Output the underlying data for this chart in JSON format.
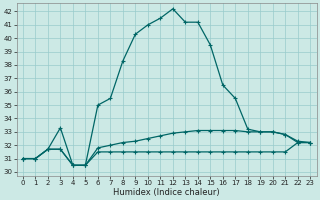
{
  "xlabel": "Humidex (Indice chaleur)",
  "bg_color": "#cce9e5",
  "grid_color": "#99cccc",
  "line_color": "#006666",
  "x_ticks": [
    0,
    1,
    2,
    3,
    4,
    5,
    6,
    7,
    8,
    9,
    10,
    11,
    12,
    13,
    14,
    15,
    16,
    17,
    18,
    19,
    20,
    21,
    22,
    23
  ],
  "y_ticks": [
    30,
    31,
    32,
    33,
    34,
    35,
    36,
    37,
    38,
    39,
    40,
    41,
    42
  ],
  "ylim": [
    29.7,
    42.6
  ],
  "xlim": [
    -0.5,
    23.5
  ],
  "s1": [
    31.0,
    31.0,
    31.7,
    31.7,
    30.5,
    30.5,
    31.5,
    31.5,
    31.5,
    31.5,
    31.5,
    31.5,
    31.5,
    31.5,
    31.5,
    31.5,
    31.5,
    31.5,
    31.5,
    31.5,
    31.5,
    31.5,
    32.2,
    32.2
  ],
  "s2": [
    31.0,
    31.0,
    31.7,
    31.7,
    30.5,
    30.5,
    31.8,
    32.0,
    32.2,
    32.3,
    32.5,
    32.7,
    32.9,
    33.0,
    33.1,
    33.1,
    33.1,
    33.1,
    33.0,
    33.0,
    33.0,
    32.8,
    32.3,
    32.2
  ],
  "s3": [
    31.0,
    31.0,
    31.7,
    33.3,
    30.5,
    30.5,
    35.0,
    35.5,
    38.3,
    40.3,
    41.0,
    41.5,
    42.2,
    41.2,
    41.2,
    39.5,
    36.5,
    35.5,
    33.2,
    33.0,
    33.0,
    32.8,
    32.2,
    32.2
  ],
  "xlabel_fontsize": 6,
  "tick_fontsize": 5
}
